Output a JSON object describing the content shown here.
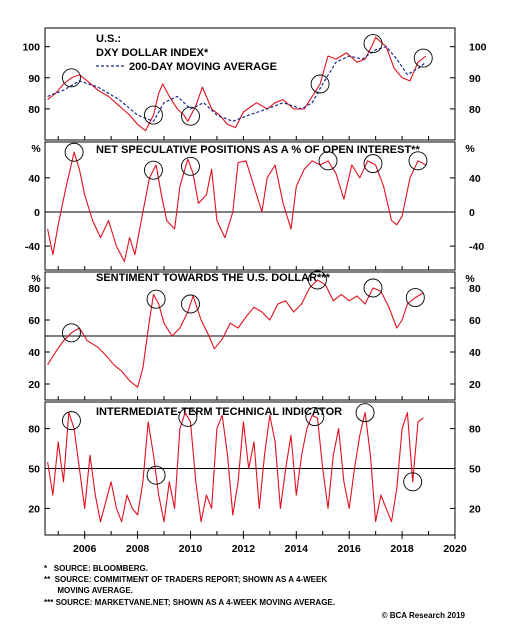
{
  "colors": {
    "series": "#e01020",
    "moving_average": "#1a2a8a",
    "axis": "#000000",
    "circle": "#000000"
  },
  "x_axis": {
    "ticks": [
      "2006",
      "2008",
      "2010",
      "2012",
      "2014",
      "2016",
      "2018",
      "2020"
    ],
    "range": [
      2004.5,
      2020.0
    ]
  },
  "footnotes": [
    "*   SOURCE: BLOOMBERG.",
    "**  SOURCE: COMMITMENT OF TRADERS REPORT; SHOWN AS A 4-WEEK",
    "      MOVING AVERAGE.",
    "*** SOURCE: MARKETVANE.NET; SHOWN AS A 4-WEEK MOVING AVERAGE."
  ],
  "credit": "© BCA Research 2019",
  "chart_data": [
    {
      "type": "line",
      "title_lines": [
        "U.S.:",
        "DXY DOLLAR INDEX*"
      ],
      "legend": [
        {
          "label": "200-DAY MOVING AVERAGE",
          "style": "dashed"
        }
      ],
      "unit_label": "",
      "ylim": [
        70,
        106
      ],
      "yticks": [
        80,
        90,
        100
      ],
      "baseline": null,
      "series": [
        {
          "name": "DXY DOLLAR INDEX",
          "x": [
            2004.6,
            2004.9,
            2005.2,
            2005.5,
            2005.8,
            2006.1,
            2006.5,
            2006.9,
            2007.3,
            2007.7,
            2008.0,
            2008.3,
            2008.6,
            2008.8,
            2008.95,
            2009.2,
            2009.5,
            2009.75,
            2009.9,
            2010.2,
            2010.45,
            2010.8,
            2011.1,
            2011.4,
            2011.7,
            2012.0,
            2012.5,
            2012.9,
            2013.2,
            2013.5,
            2013.9,
            2014.3,
            2014.6,
            2014.9,
            2015.2,
            2015.5,
            2015.9,
            2016.3,
            2016.6,
            2016.9,
            2017.0,
            2017.4,
            2017.7,
            2018.0,
            2018.3,
            2018.6,
            2018.9
          ],
          "y": [
            83,
            85,
            88,
            90,
            91,
            89,
            86,
            84,
            81,
            78,
            75,
            73,
            78,
            85,
            88,
            84,
            80,
            78,
            76,
            81,
            87,
            80,
            78,
            75,
            74,
            79,
            82,
            80,
            82,
            83,
            80,
            80,
            84,
            88,
            97,
            96,
            98,
            95,
            96,
            101,
            103,
            100,
            93,
            90,
            89,
            95,
            97
          ]
        },
        {
          "name": "200-DAY MOVING AVERAGE",
          "x": [
            2004.6,
            2005.2,
            2005.8,
            2006.5,
            2007.3,
            2008.0,
            2008.6,
            2009.0,
            2009.5,
            2010.0,
            2010.5,
            2011.0,
            2011.6,
            2012.2,
            2012.9,
            2013.5,
            2014.2,
            2014.6,
            2015.0,
            2015.5,
            2016.0,
            2016.5,
            2017.0,
            2017.4,
            2017.8,
            2018.2,
            2018.6,
            2018.9
          ],
          "y": [
            84,
            86,
            89,
            87,
            83,
            78,
            76,
            82,
            84,
            80,
            82,
            78,
            76,
            78,
            80,
            82,
            80,
            82,
            88,
            95,
            97,
            96,
            99,
            100,
            96,
            91,
            93,
            95
          ]
        }
      ],
      "highlighted_peaks": [
        2005.5,
        2008.6,
        2010.0,
        2014.9,
        2016.9,
        2018.8
      ]
    },
    {
      "type": "line",
      "title": "NET SPECULATIVE POSITIONS AS A % OF OPEN INTEREST**",
      "unit_label": "%",
      "ylim": [
        -68,
        82
      ],
      "yticks": [
        -40,
        0,
        40
      ],
      "baseline": 0,
      "series": [
        {
          "name": "NET SPECULATIVE POSITIONS",
          "x": [
            2004.6,
            2004.8,
            2005.0,
            2005.3,
            2005.6,
            2005.8,
            2006.0,
            2006.3,
            2006.6,
            2006.9,
            2007.2,
            2007.5,
            2007.7,
            2007.9,
            2008.2,
            2008.45,
            2008.7,
            2008.9,
            2009.1,
            2009.4,
            2009.6,
            2009.9,
            2010.1,
            2010.3,
            2010.6,
            2010.8,
            2011.0,
            2011.3,
            2011.6,
            2011.8,
            2012.1,
            2012.4,
            2012.7,
            2012.9,
            2013.2,
            2013.5,
            2013.8,
            2014.0,
            2014.3,
            2014.6,
            2014.9,
            2015.2,
            2015.5,
            2015.8,
            2016.1,
            2016.4,
            2016.7,
            2017.0,
            2017.3,
            2017.6,
            2017.8,
            2018.0,
            2018.3,
            2018.6,
            2018.9
          ],
          "y": [
            -20,
            -50,
            -15,
            30,
            70,
            50,
            20,
            -10,
            -30,
            -10,
            -40,
            -58,
            -30,
            -50,
            0,
            40,
            55,
            20,
            -10,
            -20,
            30,
            62,
            45,
            10,
            20,
            50,
            -10,
            -30,
            0,
            58,
            60,
            30,
            0,
            40,
            55,
            10,
            -20,
            30,
            50,
            60,
            55,
            60,
            45,
            15,
            55,
            40,
            60,
            55,
            30,
            -10,
            -15,
            -5,
            40,
            60,
            55
          ]
        }
      ],
      "highlighted_peaks": [
        2005.6,
        2008.6,
        2010.0,
        2015.2,
        2016.9,
        2018.6
      ]
    },
    {
      "type": "line",
      "title": "SENTIMENT TOWARDS THE U.S. DOLLAR***",
      "unit_label": "%",
      "ylim": [
        10,
        90
      ],
      "yticks": [
        20,
        40,
        60,
        80
      ],
      "baseline": 50,
      "series": [
        {
          "name": "SENTIMENT TOWARDS THE U.S. DOLLAR",
          "x": [
            2004.6,
            2004.9,
            2005.2,
            2005.5,
            2005.8,
            2006.1,
            2006.5,
            2006.8,
            2007.1,
            2007.4,
            2007.7,
            2008.0,
            2008.2,
            2008.45,
            2008.6,
            2008.8,
            2009.0,
            2009.3,
            2009.6,
            2009.9,
            2010.1,
            2010.4,
            2010.7,
            2010.9,
            2011.2,
            2011.5,
            2011.8,
            2012.1,
            2012.4,
            2012.7,
            2013.0,
            2013.3,
            2013.6,
            2013.9,
            2014.2,
            2014.5,
            2014.8,
            2015.1,
            2015.4,
            2015.7,
            2016.0,
            2016.3,
            2016.6,
            2016.9,
            2017.2,
            2017.5,
            2017.8,
            2018.0,
            2018.2,
            2018.5,
            2018.8
          ],
          "y": [
            32,
            40,
            47,
            52,
            55,
            47,
            43,
            38,
            32,
            28,
            22,
            18,
            30,
            60,
            76,
            70,
            58,
            50,
            55,
            65,
            75,
            60,
            50,
            42,
            48,
            58,
            55,
            62,
            68,
            65,
            60,
            70,
            72,
            65,
            70,
            80,
            85,
            82,
            72,
            76,
            72,
            75,
            70,
            80,
            78,
            68,
            55,
            60,
            70,
            74,
            77
          ]
        }
      ],
      "highlighted_peaks": [
        2005.5,
        2008.7,
        2010.0,
        2014.8,
        2016.9,
        2018.5
      ]
    },
    {
      "type": "line",
      "title": "INTERMEDIATE-TERM TECHNICAL INDICATOR",
      "unit_label": "",
      "ylim": [
        0,
        100
      ],
      "yticks": [
        20,
        50,
        80
      ],
      "baseline": 50,
      "series": [
        {
          "name": "INTERMEDIATE-TERM TECHNICAL INDICATOR",
          "x": [
            2004.6,
            2004.8,
            2005.0,
            2005.2,
            2005.4,
            2005.6,
            2005.8,
            2006.0,
            2006.2,
            2006.4,
            2006.6,
            2006.8,
            2007.0,
            2007.2,
            2007.4,
            2007.6,
            2007.8,
            2008.0,
            2008.2,
            2008.4,
            2008.6,
            2008.8,
            2009.0,
            2009.2,
            2009.4,
            2009.6,
            2009.8,
            2010.0,
            2010.2,
            2010.4,
            2010.6,
            2010.8,
            2011.0,
            2011.2,
            2011.4,
            2011.6,
            2011.8,
            2012.0,
            2012.2,
            2012.4,
            2012.6,
            2012.8,
            2013.0,
            2013.2,
            2013.4,
            2013.6,
            2013.8,
            2014.0,
            2014.2,
            2014.4,
            2014.6,
            2014.8,
            2015.0,
            2015.2,
            2015.4,
            2015.6,
            2015.8,
            2016.0,
            2016.2,
            2016.4,
            2016.6,
            2016.8,
            2017.0,
            2017.2,
            2017.4,
            2017.6,
            2017.8,
            2018.0,
            2018.2,
            2018.4,
            2018.6,
            2018.8
          ],
          "y": [
            55,
            30,
            70,
            40,
            92,
            80,
            50,
            20,
            60,
            30,
            10,
            25,
            40,
            20,
            10,
            30,
            20,
            15,
            40,
            85,
            60,
            30,
            10,
            40,
            20,
            80,
            92,
            85,
            40,
            10,
            30,
            20,
            80,
            90,
            60,
            15,
            40,
            85,
            50,
            70,
            20,
            60,
            90,
            70,
            20,
            50,
            75,
            30,
            60,
            80,
            90,
            88,
            50,
            20,
            60,
            80,
            40,
            20,
            50,
            75,
            92,
            60,
            10,
            30,
            20,
            10,
            35,
            80,
            92,
            40,
            85,
            88
          ]
        }
      ],
      "highlighted_peaks": [
        2005.5,
        2008.7,
        2009.9,
        2014.7,
        2016.6,
        2018.4
      ]
    }
  ]
}
